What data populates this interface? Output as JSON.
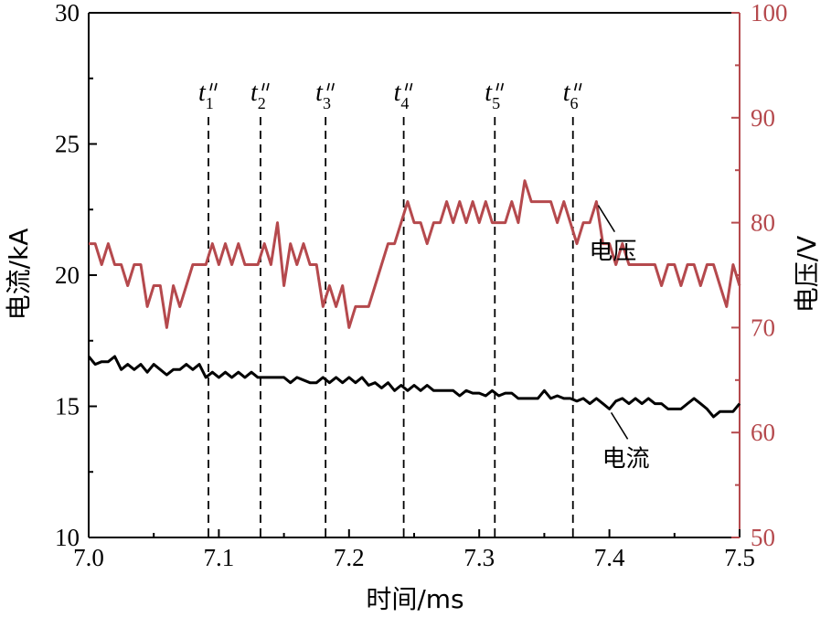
{
  "chart_data": {
    "type": "line",
    "xlabel": "时间/ms",
    "ylabel_left": "电流/kA",
    "ylabel_right": "电压/V",
    "xlim": [
      7.0,
      7.5
    ],
    "ylim_left": [
      10,
      30
    ],
    "ylim_right": [
      50,
      100
    ],
    "x_ticks": [
      "7.0",
      "7.1",
      "7.2",
      "7.3",
      "7.4",
      "7.5"
    ],
    "y_left_ticks": [
      "10",
      "15",
      "20",
      "25",
      "30"
    ],
    "y_right_ticks": [
      "50",
      "60",
      "70",
      "80",
      "90",
      "100"
    ],
    "colors": {
      "current": "#000000",
      "voltage": "#b5494d",
      "right_axis": "#b5494d"
    },
    "series": [
      {
        "name": "电压",
        "axis": "right",
        "x": [
          7.0,
          7.005,
          7.01,
          7.015,
          7.02,
          7.025,
          7.03,
          7.035,
          7.04,
          7.045,
          7.05,
          7.055,
          7.06,
          7.065,
          7.07,
          7.075,
          7.08,
          7.085,
          7.09,
          7.095,
          7.1,
          7.105,
          7.11,
          7.115,
          7.12,
          7.125,
          7.13,
          7.135,
          7.14,
          7.145,
          7.15,
          7.155,
          7.16,
          7.165,
          7.17,
          7.175,
          7.18,
          7.185,
          7.19,
          7.195,
          7.2,
          7.205,
          7.21,
          7.215,
          7.22,
          7.225,
          7.23,
          7.235,
          7.24,
          7.245,
          7.25,
          7.255,
          7.26,
          7.265,
          7.27,
          7.275,
          7.28,
          7.285,
          7.29,
          7.295,
          7.3,
          7.305,
          7.31,
          7.315,
          7.32,
          7.325,
          7.33,
          7.335,
          7.34,
          7.345,
          7.35,
          7.355,
          7.36,
          7.365,
          7.37,
          7.375,
          7.38,
          7.385,
          7.39,
          7.395,
          7.4,
          7.405,
          7.41,
          7.415,
          7.42,
          7.425,
          7.43,
          7.435,
          7.44,
          7.445,
          7.45,
          7.455,
          7.46,
          7.465,
          7.47,
          7.475,
          7.48,
          7.485,
          7.49,
          7.495,
          7.5
        ],
        "y": [
          78,
          78,
          76,
          78,
          76,
          76,
          74,
          76,
          76,
          72,
          74,
          74,
          70,
          74,
          72,
          74,
          76,
          76,
          76,
          78,
          76,
          78,
          76,
          78,
          76,
          76,
          76,
          78,
          76,
          80,
          74,
          78,
          76,
          78,
          76,
          76,
          72,
          74,
          72,
          74,
          70,
          72,
          72,
          72,
          74,
          76,
          78,
          78,
          80,
          82,
          80,
          80,
          78,
          80,
          80,
          82,
          80,
          82,
          80,
          82,
          80,
          82,
          80,
          80,
          80,
          82,
          80,
          84,
          82,
          82,
          82,
          82,
          80,
          82,
          80,
          78,
          80,
          80,
          82,
          78,
          78,
          76,
          78,
          76,
          76,
          76,
          76,
          76,
          74,
          76,
          76,
          74,
          76,
          76,
          74,
          76,
          76,
          74,
          72,
          76,
          74
        ]
      },
      {
        "name": "电流",
        "axis": "left",
        "x": [
          7.0,
          7.005,
          7.01,
          7.015,
          7.02,
          7.025,
          7.03,
          7.035,
          7.04,
          7.045,
          7.05,
          7.055,
          7.06,
          7.065,
          7.07,
          7.075,
          7.08,
          7.085,
          7.09,
          7.095,
          7.1,
          7.105,
          7.11,
          7.115,
          7.12,
          7.125,
          7.13,
          7.135,
          7.14,
          7.145,
          7.15,
          7.155,
          7.16,
          7.165,
          7.17,
          7.175,
          7.18,
          7.185,
          7.19,
          7.195,
          7.2,
          7.205,
          7.21,
          7.215,
          7.22,
          7.225,
          7.23,
          7.235,
          7.24,
          7.245,
          7.25,
          7.255,
          7.26,
          7.265,
          7.27,
          7.275,
          7.28,
          7.285,
          7.29,
          7.295,
          7.3,
          7.305,
          7.31,
          7.315,
          7.32,
          7.325,
          7.33,
          7.335,
          7.34,
          7.345,
          7.35,
          7.355,
          7.36,
          7.365,
          7.37,
          7.375,
          7.38,
          7.385,
          7.39,
          7.395,
          7.4,
          7.405,
          7.41,
          7.415,
          7.42,
          7.425,
          7.43,
          7.435,
          7.44,
          7.445,
          7.45,
          7.455,
          7.46,
          7.465,
          7.47,
          7.475,
          7.48,
          7.485,
          7.49,
          7.495,
          7.5
        ],
        "y": [
          16.9,
          16.6,
          16.7,
          16.7,
          16.9,
          16.4,
          16.6,
          16.4,
          16.6,
          16.3,
          16.6,
          16.4,
          16.2,
          16.4,
          16.4,
          16.6,
          16.4,
          16.6,
          16.1,
          16.3,
          16.1,
          16.3,
          16.1,
          16.3,
          16.1,
          16.3,
          16.1,
          16.1,
          16.1,
          16.1,
          16.1,
          15.9,
          16.1,
          16.0,
          15.9,
          15.9,
          16.1,
          15.9,
          16.1,
          15.9,
          16.1,
          15.9,
          16.1,
          15.8,
          15.9,
          15.7,
          15.9,
          15.6,
          15.8,
          15.6,
          15.8,
          15.6,
          15.8,
          15.6,
          15.6,
          15.6,
          15.6,
          15.4,
          15.6,
          15.5,
          15.5,
          15.4,
          15.6,
          15.4,
          15.5,
          15.5,
          15.3,
          15.3,
          15.3,
          15.3,
          15.6,
          15.3,
          15.4,
          15.3,
          15.3,
          15.2,
          15.3,
          15.1,
          15.3,
          15.1,
          14.9,
          15.2,
          15.3,
          15.1,
          15.3,
          15.1,
          15.3,
          15.1,
          15.1,
          14.9,
          14.9,
          14.9,
          15.1,
          15.3,
          15.1,
          14.9,
          14.6,
          14.8,
          14.8,
          14.8,
          15.1
        ]
      }
    ],
    "markers": [
      {
        "letter": "t",
        "sub": "1",
        "x": 7.092
      },
      {
        "letter": "t",
        "sub": "2",
        "x": 7.132
      },
      {
        "letter": "t",
        "sub": "3",
        "x": 7.182
      },
      {
        "letter": "t",
        "sub": "4",
        "x": 7.242
      },
      {
        "letter": "t",
        "sub": "5",
        "x": 7.312
      },
      {
        "letter": "t",
        "sub": "6",
        "x": 7.372
      }
    ],
    "annotations": [
      {
        "text": "电压",
        "series": "电压",
        "x": 7.39
      },
      {
        "text": "电流",
        "series": "电流",
        "x": 7.4
      }
    ]
  }
}
